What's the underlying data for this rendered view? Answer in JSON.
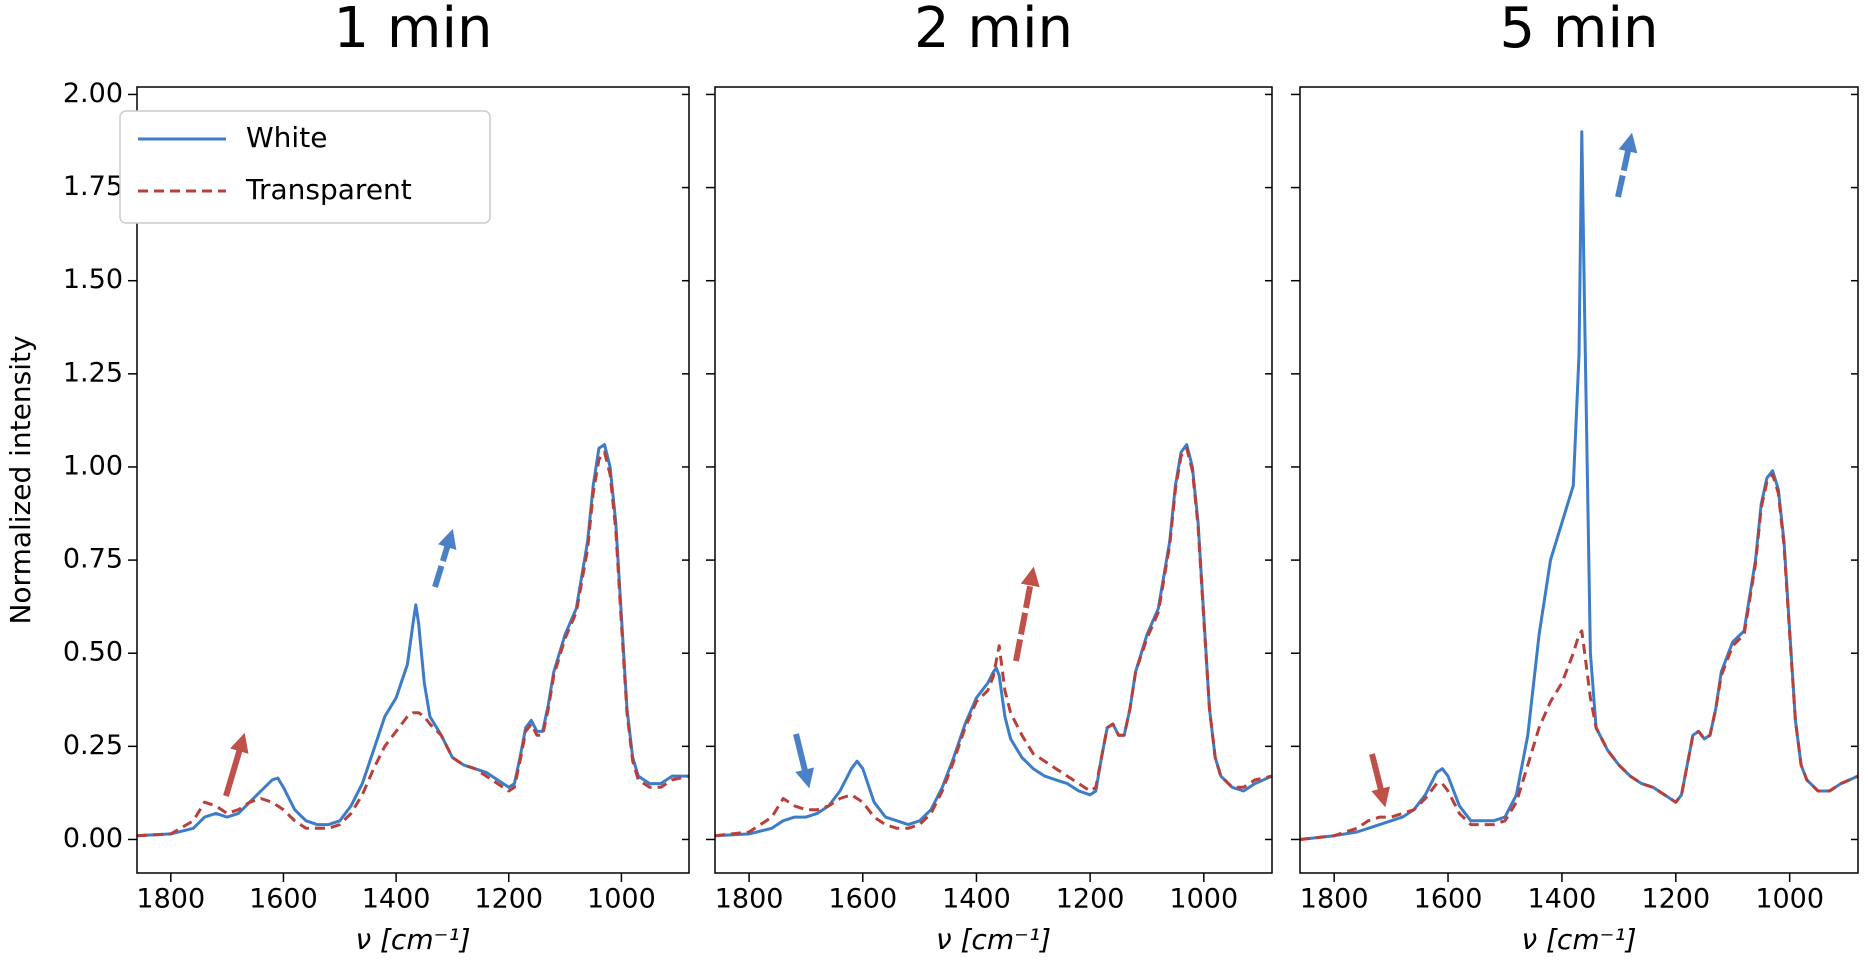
{
  "chart_data": [
    {
      "type": "line",
      "title": "1 min",
      "xlabel": "ν [cm⁻¹]",
      "ylabel": "Normalized intensity",
      "legend": "upper left",
      "xlim": [
        1860,
        880
      ],
      "ylim": [
        -0.09,
        2.02
      ],
      "xticks": [
        1800,
        1600,
        1400,
        1200,
        1000
      ],
      "yticks": [
        {
          "value": 0,
          "label": "0.00"
        },
        {
          "value": 0.25,
          "label": "0.25"
        },
        {
          "value": 0.5,
          "label": "0.50"
        },
        {
          "value": 0.75,
          "label": "0.75"
        },
        {
          "value": 1,
          "label": "1.00"
        },
        {
          "value": 1.25,
          "label": "1.25"
        },
        {
          "value": 1.5,
          "label": "1.50"
        },
        {
          "value": 1.75,
          "label": "1.75"
        },
        {
          "value": 2,
          "label": "2.00"
        }
      ],
      "x": [
        1860,
        1800,
        1760,
        1740,
        1720,
        1700,
        1680,
        1660,
        1640,
        1620,
        1610,
        1600,
        1580,
        1560,
        1540,
        1520,
        1500,
        1480,
        1460,
        1440,
        1420,
        1400,
        1380,
        1370,
        1365,
        1360,
        1350,
        1340,
        1320,
        1300,
        1280,
        1260,
        1240,
        1220,
        1200,
        1190,
        1180,
        1170,
        1160,
        1150,
        1140,
        1130,
        1120,
        1100,
        1080,
        1060,
        1050,
        1040,
        1030,
        1020,
        1010,
        1000,
        990,
        980,
        970,
        950,
        930,
        910,
        880
      ],
      "series": [
        {
          "name": "White",
          "color": "#3d7cc6",
          "linestyle": "solid",
          "values": [
            0.01,
            0.015,
            0.03,
            0.06,
            0.07,
            0.06,
            0.07,
            0.1,
            0.13,
            0.16,
            0.165,
            0.14,
            0.08,
            0.05,
            0.04,
            0.04,
            0.05,
            0.09,
            0.15,
            0.24,
            0.33,
            0.38,
            0.47,
            0.58,
            0.63,
            0.58,
            0.42,
            0.33,
            0.28,
            0.22,
            0.2,
            0.19,
            0.18,
            0.16,
            0.14,
            0.15,
            0.22,
            0.3,
            0.32,
            0.29,
            0.29,
            0.36,
            0.45,
            0.55,
            0.62,
            0.8,
            0.95,
            1.05,
            1.06,
            1.0,
            0.85,
            0.6,
            0.35,
            0.22,
            0.17,
            0.15,
            0.15,
            0.17,
            0.17
          ]
        },
        {
          "name": "Transparent",
          "color": "#b9403a",
          "linestyle": "dashed",
          "values": [
            0.01,
            0.015,
            0.05,
            0.1,
            0.09,
            0.07,
            0.08,
            0.1,
            0.11,
            0.1,
            0.09,
            0.08,
            0.05,
            0.03,
            0.03,
            0.03,
            0.04,
            0.07,
            0.12,
            0.19,
            0.25,
            0.29,
            0.33,
            0.34,
            0.34,
            0.34,
            0.33,
            0.31,
            0.28,
            0.22,
            0.2,
            0.19,
            0.17,
            0.15,
            0.13,
            0.14,
            0.21,
            0.29,
            0.31,
            0.28,
            0.28,
            0.35,
            0.44,
            0.54,
            0.61,
            0.78,
            0.93,
            1.02,
            1.04,
            0.98,
            0.83,
            0.58,
            0.34,
            0.21,
            0.16,
            0.14,
            0.14,
            0.16,
            0.17
          ]
        }
      ]
    },
    {
      "type": "line",
      "title": "2 min",
      "xlabel": "ν [cm⁻¹]",
      "xlim": [
        1860,
        880
      ],
      "ylim": [
        -0.09,
        2.02
      ],
      "xticks": [
        1800,
        1600,
        1400,
        1200,
        1000
      ],
      "yticks": [
        0,
        0.25,
        0.5,
        0.75,
        1,
        1.25,
        1.5,
        1.75,
        2
      ],
      "x": [
        1860,
        1800,
        1760,
        1740,
        1720,
        1700,
        1680,
        1660,
        1640,
        1620,
        1610,
        1600,
        1580,
        1560,
        1540,
        1520,
        1500,
        1480,
        1460,
        1440,
        1420,
        1400,
        1380,
        1370,
        1365,
        1360,
        1350,
        1340,
        1320,
        1300,
        1280,
        1260,
        1240,
        1220,
        1200,
        1190,
        1180,
        1170,
        1160,
        1150,
        1140,
        1130,
        1120,
        1100,
        1080,
        1060,
        1050,
        1040,
        1030,
        1020,
        1010,
        1000,
        990,
        980,
        970,
        950,
        930,
        910,
        880
      ],
      "series": [
        {
          "color": "#3d7cc6",
          "linestyle": "solid",
          "values": [
            0.01,
            0.015,
            0.03,
            0.05,
            0.06,
            0.06,
            0.07,
            0.09,
            0.13,
            0.19,
            0.21,
            0.19,
            0.1,
            0.06,
            0.05,
            0.04,
            0.05,
            0.08,
            0.14,
            0.22,
            0.31,
            0.38,
            0.42,
            0.45,
            0.46,
            0.44,
            0.33,
            0.27,
            0.22,
            0.19,
            0.17,
            0.16,
            0.15,
            0.13,
            0.12,
            0.13,
            0.22,
            0.3,
            0.31,
            0.28,
            0.28,
            0.35,
            0.45,
            0.55,
            0.62,
            0.8,
            0.95,
            1.04,
            1.06,
            1.0,
            0.85,
            0.6,
            0.35,
            0.22,
            0.17,
            0.14,
            0.13,
            0.15,
            0.17
          ]
        },
        {
          "color": "#b9403a",
          "linestyle": "dashed",
          "values": [
            0.01,
            0.02,
            0.06,
            0.11,
            0.09,
            0.08,
            0.08,
            0.09,
            0.11,
            0.12,
            0.11,
            0.1,
            0.06,
            0.04,
            0.03,
            0.03,
            0.04,
            0.07,
            0.13,
            0.21,
            0.3,
            0.37,
            0.4,
            0.44,
            0.48,
            0.52,
            0.4,
            0.34,
            0.28,
            0.23,
            0.21,
            0.19,
            0.17,
            0.15,
            0.13,
            0.14,
            0.22,
            0.3,
            0.31,
            0.28,
            0.28,
            0.35,
            0.45,
            0.54,
            0.61,
            0.79,
            0.94,
            1.03,
            1.05,
            0.99,
            0.84,
            0.59,
            0.35,
            0.22,
            0.17,
            0.14,
            0.14,
            0.16,
            0.17
          ]
        }
      ]
    },
    {
      "type": "line",
      "title": "5 min",
      "xlabel": "ν [cm⁻¹]",
      "xlim": [
        1860,
        880
      ],
      "ylim": [
        -0.09,
        2.02
      ],
      "xticks": [
        1800,
        1600,
        1400,
        1200,
        1000
      ],
      "yticks": [
        0,
        0.25,
        0.5,
        0.75,
        1,
        1.25,
        1.5,
        1.75,
        2
      ],
      "x": [
        1860,
        1800,
        1760,
        1740,
        1720,
        1700,
        1680,
        1660,
        1640,
        1620,
        1610,
        1600,
        1580,
        1560,
        1540,
        1520,
        1500,
        1480,
        1460,
        1440,
        1420,
        1400,
        1380,
        1370,
        1365,
        1360,
        1350,
        1340,
        1320,
        1300,
        1280,
        1260,
        1240,
        1220,
        1200,
        1190,
        1180,
        1170,
        1160,
        1150,
        1140,
        1130,
        1120,
        1100,
        1080,
        1060,
        1050,
        1040,
        1030,
        1020,
        1010,
        1000,
        990,
        980,
        970,
        950,
        930,
        910,
        880
      ],
      "series": [
        {
          "color": "#3d7cc6",
          "linestyle": "solid",
          "values": [
            0.0,
            0.01,
            0.02,
            0.03,
            0.04,
            0.05,
            0.06,
            0.08,
            0.12,
            0.18,
            0.19,
            0.17,
            0.09,
            0.05,
            0.05,
            0.05,
            0.06,
            0.12,
            0.28,
            0.55,
            0.75,
            0.85,
            0.95,
            1.3,
            1.9,
            1.4,
            0.5,
            0.3,
            0.24,
            0.2,
            0.17,
            0.15,
            0.14,
            0.12,
            0.1,
            0.12,
            0.2,
            0.28,
            0.29,
            0.27,
            0.28,
            0.35,
            0.45,
            0.53,
            0.56,
            0.75,
            0.9,
            0.97,
            0.99,
            0.94,
            0.8,
            0.56,
            0.32,
            0.2,
            0.16,
            0.13,
            0.13,
            0.15,
            0.17
          ]
        },
        {
          "color": "#b9403a",
          "linestyle": "dashed",
          "values": [
            0.0,
            0.01,
            0.03,
            0.05,
            0.06,
            0.06,
            0.07,
            0.08,
            0.11,
            0.15,
            0.15,
            0.13,
            0.07,
            0.04,
            0.04,
            0.04,
            0.05,
            0.1,
            0.2,
            0.3,
            0.37,
            0.42,
            0.5,
            0.55,
            0.56,
            0.5,
            0.38,
            0.3,
            0.24,
            0.2,
            0.17,
            0.15,
            0.14,
            0.12,
            0.1,
            0.12,
            0.2,
            0.28,
            0.29,
            0.27,
            0.28,
            0.35,
            0.44,
            0.52,
            0.55,
            0.74,
            0.89,
            0.96,
            0.98,
            0.93,
            0.79,
            0.55,
            0.32,
            0.2,
            0.16,
            0.13,
            0.13,
            0.15,
            0.17
          ]
        }
      ]
    }
  ]
}
